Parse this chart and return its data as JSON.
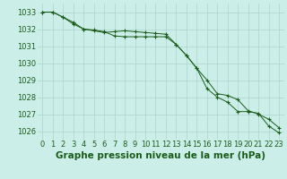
{
  "title": "Graphe pression niveau de la mer (hPa)",
  "background_color": "#cceee8",
  "grid_color": "#aad4cc",
  "line_color": "#1a5c1a",
  "x_hours": [
    0,
    1,
    2,
    3,
    4,
    5,
    6,
    7,
    8,
    9,
    10,
    11,
    12,
    13,
    14,
    15,
    16,
    17,
    18,
    19,
    20,
    21,
    22,
    23
  ],
  "series1": [
    1033.0,
    1033.0,
    1032.7,
    1032.4,
    1032.0,
    1031.9,
    1031.8,
    1031.85,
    1031.9,
    1031.85,
    1031.8,
    1031.75,
    1031.7,
    1031.1,
    1030.45,
    1029.7,
    1029.0,
    1028.2,
    1028.1,
    1027.85,
    1027.2,
    1027.0,
    1026.7,
    1026.2
  ],
  "series2": [
    1033.0,
    1033.0,
    1032.7,
    1032.3,
    1032.0,
    1031.95,
    1031.85,
    1031.6,
    1031.55,
    1031.55,
    1031.55,
    1031.55,
    1031.55,
    1031.1,
    1030.45,
    1029.7,
    1028.5,
    1028.0,
    1027.7,
    1027.15,
    1027.15,
    1027.05,
    1026.3,
    1025.9
  ],
  "ylim": [
    1025.5,
    1033.5
  ],
  "yticks": [
    1026,
    1027,
    1028,
    1029,
    1030,
    1031,
    1032,
    1033
  ],
  "title_fontsize": 7.5,
  "tick_fontsize": 6.0,
  "xlabel_fontsize": 7.5
}
